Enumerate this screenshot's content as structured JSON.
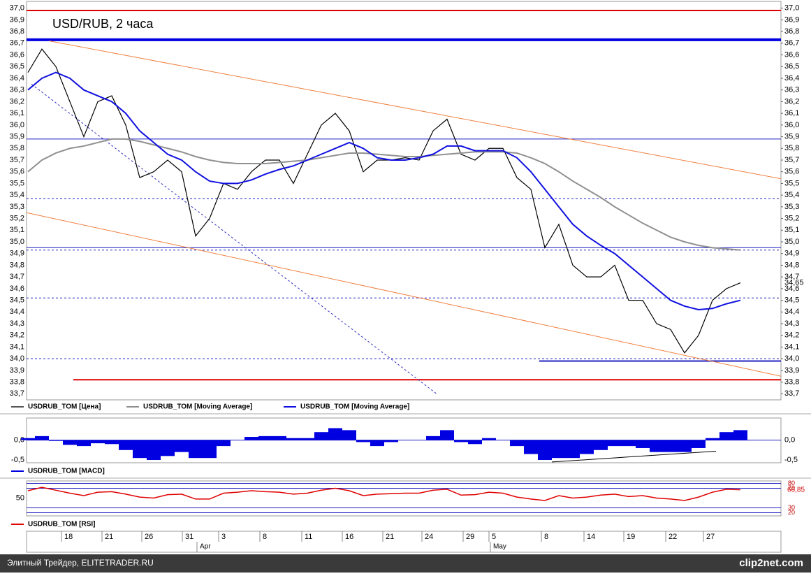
{
  "chart_data": [
    {
      "type": "line",
      "title": "USD/RUB, 2 часа",
      "x": [
        2,
        22,
        42,
        62,
        82,
        102,
        122,
        142,
        162,
        182,
        202,
        222,
        242,
        262,
        282,
        302,
        322,
        342,
        362,
        382,
        402,
        422,
        442,
        462,
        482,
        502,
        522,
        542,
        562,
        582,
        602,
        622,
        642,
        662,
        682,
        702,
        722,
        742,
        762,
        782,
        802,
        822,
        842,
        862,
        882,
        902,
        922,
        942,
        962,
        982,
        1002,
        1022
      ],
      "xlim": [
        0,
        1080
      ],
      "ylim": [
        33.66,
        37.04
      ],
      "yticks": [
        {
          "value": 33.7,
          "label": "33,7"
        },
        {
          "value": 33.8,
          "label": "33,8"
        },
        {
          "value": 33.9,
          "label": "33,9"
        },
        {
          "value": 34.0,
          "label": "34,0"
        },
        {
          "value": 34.1,
          "label": "34,1"
        },
        {
          "value": 34.2,
          "label": "34,2"
        },
        {
          "value": 34.3,
          "label": "34,3"
        },
        {
          "value": 34.4,
          "label": "34,4"
        },
        {
          "value": 34.5,
          "label": "34,5"
        },
        {
          "value": 34.6,
          "label": "34,6"
        },
        {
          "value": 34.7,
          "label": "34,7"
        },
        {
          "value": 34.8,
          "label": "34,8"
        },
        {
          "value": 34.9,
          "label": "34,9"
        },
        {
          "value": 35.0,
          "label": "35,0"
        },
        {
          "value": 35.1,
          "label": "35,1"
        },
        {
          "value": 35.2,
          "label": "35,2"
        },
        {
          "value": 35.3,
          "label": "35,3"
        },
        {
          "value": 35.4,
          "label": "35,4"
        },
        {
          "value": 35.5,
          "label": "35,5"
        },
        {
          "value": 35.6,
          "label": "35,6"
        },
        {
          "value": 35.7,
          "label": "35,7"
        },
        {
          "value": 35.8,
          "label": "35,8"
        },
        {
          "value": 35.9,
          "label": "35,9"
        },
        {
          "value": 36.0,
          "label": "36,0"
        },
        {
          "value": 36.1,
          "label": "36,1"
        },
        {
          "value": 36.2,
          "label": "36,2"
        },
        {
          "value": 36.3,
          "label": "36,3"
        },
        {
          "value": 36.4,
          "label": "36,4"
        },
        {
          "value": 36.5,
          "label": "36,5"
        },
        {
          "value": 36.6,
          "label": "36,6"
        },
        {
          "value": 36.7,
          "label": "36,7"
        },
        {
          "value": 36.8,
          "label": "36,8"
        },
        {
          "value": 36.9,
          "label": "36,9"
        },
        {
          "value": 37.0,
          "label": "37,0"
        }
      ],
      "series": [
        {
          "name": "USDRUB_TOM [Цена]",
          "color": "#000000",
          "legend_color": "#555555",
          "values": [
            36.45,
            36.65,
            36.5,
            36.2,
            35.9,
            36.2,
            36.25,
            36.0,
            35.55,
            35.6,
            35.7,
            35.6,
            35.05,
            35.2,
            35.5,
            35.45,
            35.6,
            35.7,
            35.7,
            35.5,
            35.75,
            36.0,
            36.1,
            35.95,
            35.6,
            35.7,
            35.7,
            35.72,
            35.7,
            35.95,
            36.05,
            35.75,
            35.7,
            35.8,
            35.8,
            35.55,
            35.45,
            34.95,
            35.15,
            34.8,
            34.7,
            34.7,
            34.8,
            34.5,
            34.5,
            34.3,
            34.25,
            34.05,
            34.2,
            34.5,
            34.6,
            34.65
          ]
        },
        {
          "name": "USDRUB_TOM [Moving Average]",
          "color": "#909090",
          "values": [
            35.6,
            35.7,
            35.76,
            35.8,
            35.82,
            35.85,
            35.88,
            35.88,
            35.86,
            35.83,
            35.8,
            35.77,
            35.73,
            35.7,
            35.68,
            35.67,
            35.67,
            35.67,
            35.68,
            35.69,
            35.7,
            35.72,
            35.74,
            35.76,
            35.76,
            35.75,
            35.74,
            35.73,
            35.73,
            35.74,
            35.75,
            35.76,
            35.77,
            35.77,
            35.77,
            35.76,
            35.72,
            35.67,
            35.6,
            35.52,
            35.45,
            35.38,
            35.3,
            35.23,
            35.16,
            35.1,
            35.04,
            35.0,
            34.97,
            34.95,
            34.94,
            34.93
          ]
        },
        {
          "name": "USDRUB_TOM [Moving Average]",
          "color": "#1010e0",
          "values": [
            36.3,
            36.4,
            36.45,
            36.4,
            36.3,
            36.25,
            36.2,
            36.1,
            35.95,
            35.85,
            35.75,
            35.7,
            35.6,
            35.52,
            35.5,
            35.5,
            35.53,
            35.58,
            35.62,
            35.65,
            35.7,
            35.75,
            35.8,
            35.85,
            35.8,
            35.72,
            35.7,
            35.7,
            35.72,
            35.75,
            35.82,
            35.82,
            35.78,
            35.78,
            35.78,
            35.72,
            35.6,
            35.45,
            35.3,
            35.15,
            35.05,
            34.97,
            34.9,
            34.8,
            34.7,
            34.6,
            34.5,
            34.45,
            34.42,
            34.43,
            34.47,
            34.5
          ]
        }
      ],
      "last_value": 34.65,
      "last_value_label": "34,65",
      "levels": [
        {
          "value": 36.98,
          "color": "#e00000",
          "width": 2,
          "dash": false,
          "from": 0
        },
        {
          "value": 36.73,
          "color": "#0000e0",
          "width": 4,
          "dash": false,
          "from": 0
        },
        {
          "value": 35.88,
          "color": "#2020c0",
          "width": 1,
          "dash": false,
          "from": 0
        },
        {
          "value": 35.37,
          "color": "#2020c0",
          "width": 1,
          "dash": true,
          "from": 0
        },
        {
          "value": 34.95,
          "color": "#2020c0",
          "width": 1,
          "dash": false,
          "from": 0
        },
        {
          "value": 34.93,
          "color": "#2020c0",
          "width": 1,
          "dash": true,
          "from": 0
        },
        {
          "value": 34.52,
          "color": "#2020c0",
          "width": 1,
          "dash": true,
          "from": 0
        },
        {
          "value": 34.0,
          "color": "#2020c0",
          "width": 1,
          "dash": true,
          "from": 0
        },
        {
          "value": 33.98,
          "color": "#2020c0",
          "width": 2,
          "dash": false,
          "from": 734
        },
        {
          "value": 33.82,
          "color": "#e00000",
          "width": 2,
          "dash": false,
          "from": 67
        }
      ],
      "trendlines": [
        {
          "x": [
            32,
            1080
          ],
          "y": [
            36.72,
            35.54
          ],
          "color": "#f08040",
          "dash": false
        },
        {
          "x": [
            0,
            1080
          ],
          "y": [
            35.25,
            33.85
          ],
          "color": "#f08040",
          "dash": false
        },
        {
          "x": [
            7,
            587
          ],
          "y": [
            36.35,
            33.7
          ],
          "color": "#3030c0",
          "dash": true
        }
      ],
      "xticks": [
        {
          "value": 50,
          "label": "18"
        },
        {
          "value": 108,
          "label": "21"
        },
        {
          "value": 165,
          "label": "26"
        },
        {
          "value": 223,
          "label": "31"
        },
        {
          "value": 275,
          "label": "3"
        },
        {
          "value": 334,
          "label": "8"
        },
        {
          "value": 394,
          "label": "11"
        },
        {
          "value": 452,
          "label": "16"
        },
        {
          "value": 510,
          "label": "21"
        },
        {
          "value": 566,
          "label": "24"
        },
        {
          "value": 625,
          "label": "29"
        },
        {
          "value": 662,
          "label": "5"
        },
        {
          "value": 737,
          "label": "8"
        },
        {
          "value": 798,
          "label": "14"
        },
        {
          "value": 855,
          "label": "19"
        },
        {
          "value": 915,
          "label": "22"
        },
        {
          "value": 969,
          "label": "27"
        }
      ],
      "month_ticks": [
        {
          "value": 244,
          "label": "Apr"
        },
        {
          "value": 664,
          "label": "May"
        }
      ]
    },
    {
      "type": "bar",
      "name": "USDRUB_TOM [MACD]",
      "color": "#0000e0",
      "x": [
        2,
        22,
        42,
        62,
        82,
        102,
        122,
        142,
        162,
        182,
        202,
        222,
        242,
        262,
        282,
        302,
        322,
        342,
        362,
        382,
        402,
        422,
        442,
        462,
        482,
        502,
        522,
        542,
        562,
        582,
        602,
        622,
        642,
        662,
        682,
        702,
        722,
        742,
        762,
        782,
        802,
        822,
        842,
        862,
        882,
        902,
        922,
        942,
        962,
        982,
        1002,
        1022
      ],
      "values": [
        0.05,
        0.1,
        -0.02,
        -0.12,
        -0.15,
        -0.08,
        -0.1,
        -0.25,
        -0.45,
        -0.5,
        -0.4,
        -0.3,
        -0.45,
        -0.45,
        -0.15,
        0.0,
        0.08,
        0.1,
        0.1,
        0.05,
        0.05,
        0.2,
        0.3,
        0.25,
        -0.05,
        -0.15,
        -0.05,
        0.0,
        0.0,
        0.1,
        0.25,
        -0.05,
        -0.1,
        0.05,
        0.0,
        -0.15,
        -0.35,
        -0.5,
        -0.45,
        -0.45,
        -0.35,
        -0.25,
        -0.15,
        -0.15,
        -0.2,
        -0.3,
        -0.3,
        -0.3,
        -0.2,
        0.05,
        0.2,
        0.25
      ],
      "xlim": [
        0,
        1080
      ],
      "ylim": [
        -0.57,
        0.52
      ],
      "yticks": [
        {
          "value": 0,
          "label": "0,0"
        },
        {
          "value": -0.5,
          "label": "-0,5"
        }
      ],
      "trendlines": [
        {
          "x": [
            752,
            987
          ],
          "y": [
            -0.55,
            -0.28
          ],
          "color": "#000000",
          "dash": false
        }
      ]
    },
    {
      "type": "line",
      "name": "USDRUB_TOM [RSI]",
      "color": "#e00000",
      "x": [
        2,
        22,
        42,
        62,
        82,
        102,
        122,
        142,
        162,
        182,
        202,
        222,
        242,
        262,
        282,
        302,
        322,
        342,
        362,
        382,
        402,
        422,
        442,
        462,
        482,
        502,
        522,
        542,
        562,
        582,
        602,
        622,
        642,
        662,
        682,
        702,
        722,
        742,
        762,
        782,
        802,
        822,
        842,
        862,
        882,
        902,
        922,
        942,
        962,
        982,
        1002,
        1022
      ],
      "values": [
        65,
        72,
        66,
        60,
        55,
        62,
        63,
        58,
        52,
        50,
        57,
        58,
        48,
        48,
        60,
        62,
        65,
        63,
        62,
        58,
        60,
        66,
        70,
        65,
        55,
        58,
        59,
        60,
        60,
        66,
        68,
        56,
        57,
        62,
        60,
        52,
        48,
        45,
        55,
        50,
        52,
        56,
        58,
        53,
        55,
        50,
        48,
        45,
        52,
        62,
        68,
        67
      ],
      "xlim": [
        0,
        1080
      ],
      "ylim": [
        15,
        85
      ],
      "left_ticks": [
        50
      ],
      "right_ticks": [
        80,
        70,
        30,
        20
      ],
      "last_value": 66.85,
      "last_value_label": "66,85"
    }
  ],
  "footer": {
    "left": "Элитный Трейдер, ELITETRADER.RU",
    "right": "clip2net.com"
  }
}
